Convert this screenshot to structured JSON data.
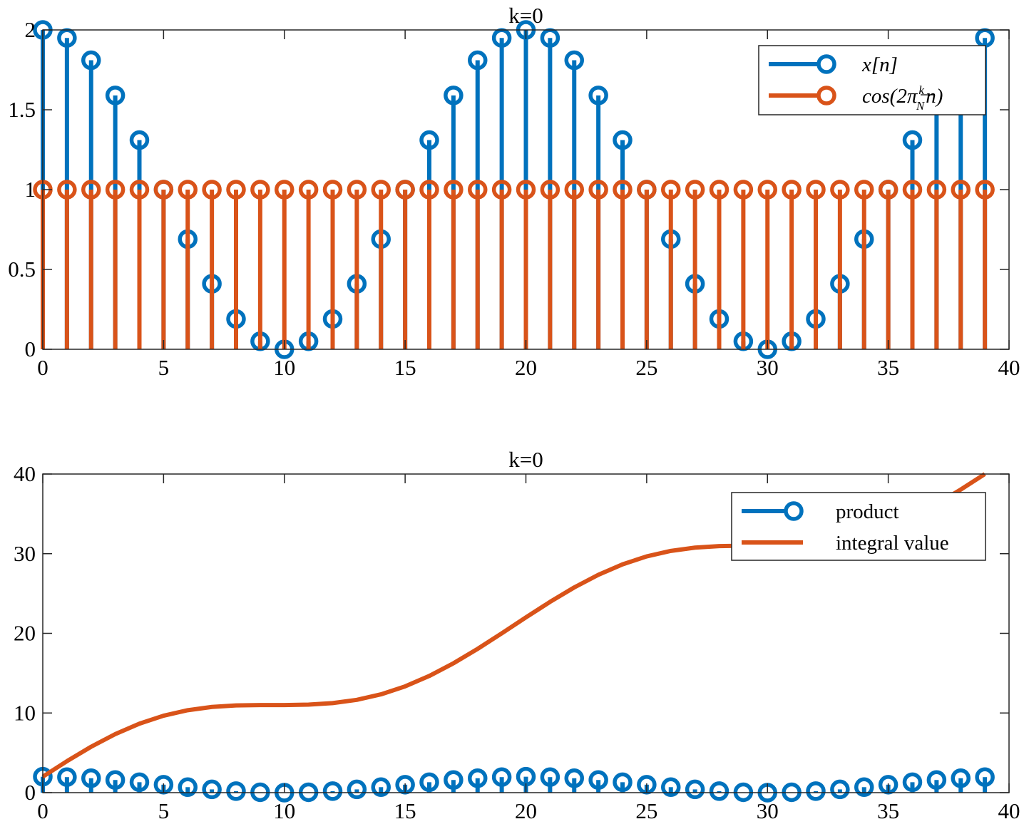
{
  "colors": {
    "blue": "#0072bd",
    "orange": "#d95319",
    "axis": "#262626"
  },
  "chart_data": [
    {
      "type": "stem",
      "title": "k=0",
      "xlim": [
        0,
        40
      ],
      "ylim": [
        0,
        2
      ],
      "xticks": [
        0,
        5,
        10,
        15,
        20,
        25,
        30,
        35,
        40
      ],
      "yticks": [
        0,
        0.5,
        1,
        1.5,
        2
      ],
      "ytick_labels": [
        "0",
        "0.5",
        "1",
        "1.5",
        "2"
      ],
      "box": true,
      "legend": {
        "placement": "top-right"
      },
      "series": [
        {
          "name": "x[n]",
          "color": "#0072bd",
          "x": [
            0,
            1,
            2,
            3,
            4,
            5,
            6,
            7,
            8,
            9,
            10,
            11,
            12,
            13,
            14,
            15,
            16,
            17,
            18,
            19,
            20,
            21,
            22,
            23,
            24,
            25,
            26,
            27,
            28,
            29,
            30,
            31,
            32,
            33,
            34,
            35,
            36,
            37,
            38,
            39
          ],
          "values": [
            2,
            1.95,
            1.81,
            1.59,
            1.31,
            1,
            0.69,
            0.41,
            0.19,
            0.05,
            0,
            0.05,
            0.19,
            0.41,
            0.69,
            1,
            1.31,
            1.59,
            1.81,
            1.95,
            2,
            1.95,
            1.81,
            1.59,
            1.31,
            1,
            0.69,
            0.41,
            0.19,
            0.05,
            0,
            0.05,
            0.19,
            0.41,
            0.69,
            1,
            1.31,
            1.59,
            1.81,
            1.95
          ]
        },
        {
          "name": "cos(2π k/N n)",
          "name_parts": {
            "pre": "cos(2π",
            "num": "k",
            "den": "N",
            "post": "n)"
          },
          "color": "#d95319",
          "x": [
            0,
            1,
            2,
            3,
            4,
            5,
            6,
            7,
            8,
            9,
            10,
            11,
            12,
            13,
            14,
            15,
            16,
            17,
            18,
            19,
            20,
            21,
            22,
            23,
            24,
            25,
            26,
            27,
            28,
            29,
            30,
            31,
            32,
            33,
            34,
            35,
            36,
            37,
            38,
            39
          ],
          "values": [
            1,
            1,
            1,
            1,
            1,
            1,
            1,
            1,
            1,
            1,
            1,
            1,
            1,
            1,
            1,
            1,
            1,
            1,
            1,
            1,
            1,
            1,
            1,
            1,
            1,
            1,
            1,
            1,
            1,
            1,
            1,
            1,
            1,
            1,
            1,
            1,
            1,
            1,
            1,
            1
          ]
        }
      ]
    },
    {
      "type": "line",
      "title": "k=0",
      "xlim": [
        0,
        40
      ],
      "ylim": [
        0,
        40
      ],
      "xticks": [
        0,
        5,
        10,
        15,
        20,
        25,
        30,
        35,
        40
      ],
      "yticks": [
        0,
        10,
        20,
        30,
        40
      ],
      "ytick_labels": [
        "0",
        "10",
        "20",
        "30",
        "40"
      ],
      "box": true,
      "legend": {
        "placement": "top-right"
      },
      "series": [
        {
          "name": "product",
          "kind": "stem",
          "color": "#0072bd",
          "x": [
            0,
            1,
            2,
            3,
            4,
            5,
            6,
            7,
            8,
            9,
            10,
            11,
            12,
            13,
            14,
            15,
            16,
            17,
            18,
            19,
            20,
            21,
            22,
            23,
            24,
            25,
            26,
            27,
            28,
            29,
            30,
            31,
            32,
            33,
            34,
            35,
            36,
            37,
            38,
            39
          ],
          "values": [
            2,
            1.95,
            1.81,
            1.59,
            1.31,
            1,
            0.69,
            0.41,
            0.19,
            0.05,
            0,
            0.05,
            0.19,
            0.41,
            0.69,
            1,
            1.31,
            1.59,
            1.81,
            1.95,
            2,
            1.95,
            1.81,
            1.59,
            1.31,
            1,
            0.69,
            0.41,
            0.19,
            0.05,
            0,
            0.05,
            0.19,
            0.41,
            0.69,
            1,
            1.31,
            1.59,
            1.81,
            1.95
          ]
        },
        {
          "name": "integral value",
          "kind": "line",
          "color": "#d95319",
          "x": [
            0,
            1,
            2,
            3,
            4,
            5,
            6,
            7,
            8,
            9,
            10,
            11,
            12,
            13,
            14,
            15,
            16,
            17,
            18,
            19,
            20,
            21,
            22,
            23,
            24,
            25,
            26,
            27,
            28,
            29,
            30,
            31,
            32,
            33,
            34,
            35,
            36,
            37,
            38,
            39
          ],
          "values": [
            2,
            3.95,
            5.76,
            7.35,
            8.66,
            9.66,
            10.35,
            10.76,
            10.95,
            11,
            11,
            11.05,
            11.24,
            11.65,
            12.34,
            13.34,
            14.65,
            16.24,
            18.05,
            20,
            22,
            23.95,
            25.76,
            27.35,
            28.66,
            29.66,
            30.35,
            30.76,
            30.95,
            31,
            31,
            31.05,
            31.24,
            31.65,
            32.34,
            33.34,
            34.65,
            36.24,
            38.05,
            40
          ]
        }
      ]
    }
  ]
}
